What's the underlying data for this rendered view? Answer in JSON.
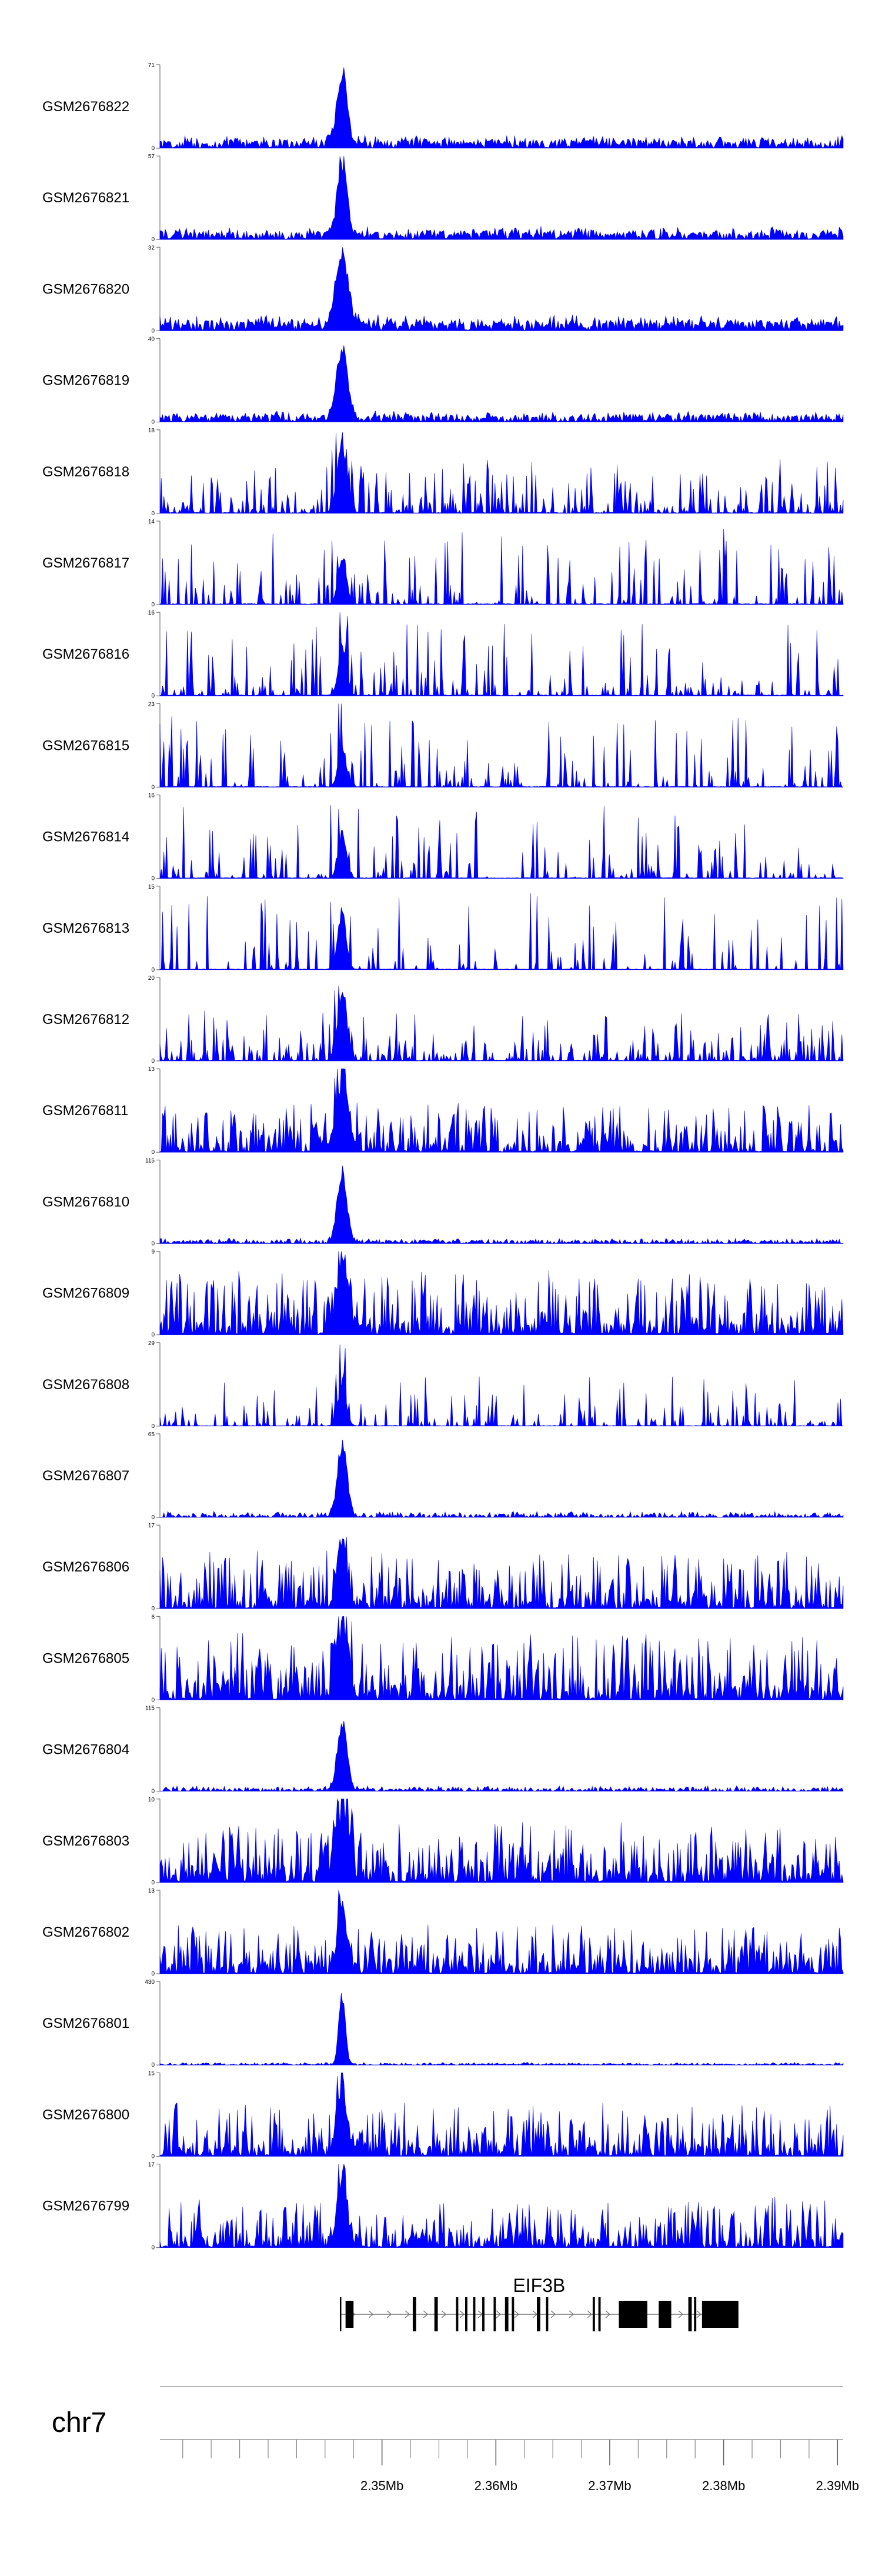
{
  "chart_data": {
    "type": "area",
    "title": "",
    "chromosome": "chr7",
    "xlim_mb": [
      2.3305,
      2.3905
    ],
    "x_ticks": [
      {
        "value": 2.35,
        "label": "2.35Mb"
      },
      {
        "value": 2.36,
        "label": "2.36Mb"
      },
      {
        "value": 2.37,
        "label": "2.37Mb"
      },
      {
        "value": 2.38,
        "label": "2.38Mb"
      },
      {
        "value": 2.39,
        "label": "2.39Mb"
      }
    ],
    "peak_center_mb": 2.3465,
    "fill_color": "#0000ff",
    "tracks": [
      {
        "name": "GSM2676822",
        "ymax": 71,
        "ymax_label": "71",
        "ymin_label": "0",
        "baseline_frac": 0.06,
        "peak_frac": 0.98,
        "peak_width": 0.0006,
        "noise_frac": 0.08,
        "sparsity": 0.2
      },
      {
        "name": "GSM2676821",
        "ymax": 57,
        "ymax_label": "57",
        "ymin_label": "0",
        "baseline_frac": 0.06,
        "peak_frac": 0.97,
        "peak_width": 0.0006,
        "noise_frac": 0.08,
        "sparsity": 0.2
      },
      {
        "name": "GSM2676820",
        "ymax": 32,
        "ymax_label": "32",
        "ymin_label": "0",
        "baseline_frac": 0.07,
        "peak_frac": 0.95,
        "peak_width": 0.0008,
        "noise_frac": 0.1,
        "sparsity": 0.15
      },
      {
        "name": "GSM2676819",
        "ymax": 40,
        "ymax_label": "40",
        "ymin_label": "0",
        "baseline_frac": 0.05,
        "peak_frac": 0.96,
        "peak_width": 0.0007,
        "noise_frac": 0.07,
        "sparsity": 0.2
      },
      {
        "name": "GSM2676818",
        "ymax": 18,
        "ymax_label": "18",
        "ymin_label": "0",
        "baseline_frac": 0.05,
        "peak_frac": 0.95,
        "peak_width": 0.0006,
        "noise_frac": 0.6,
        "sparsity": 0.6
      },
      {
        "name": "GSM2676817",
        "ymax": 14,
        "ymax_label": "14",
        "ymin_label": "0",
        "baseline_frac": 0.05,
        "peak_frac": 0.7,
        "peak_width": 0.0005,
        "noise_frac": 0.85,
        "sparsity": 0.75
      },
      {
        "name": "GSM2676816",
        "ymax": 16,
        "ymax_label": "16",
        "ymin_label": "0",
        "baseline_frac": 0.05,
        "peak_frac": 0.6,
        "peak_width": 0.0005,
        "noise_frac": 0.85,
        "sparsity": 0.7
      },
      {
        "name": "GSM2676815",
        "ymax": 23,
        "ymax_label": "23",
        "ymin_label": "0",
        "baseline_frac": 0.04,
        "peak_frac": 0.55,
        "peak_width": 0.0005,
        "noise_frac": 0.8,
        "sparsity": 0.72
      },
      {
        "name": "GSM2676814",
        "ymax": 16,
        "ymax_label": "16",
        "ymin_label": "0",
        "baseline_frac": 0.04,
        "peak_frac": 0.6,
        "peak_width": 0.0005,
        "noise_frac": 0.85,
        "sparsity": 0.74
      },
      {
        "name": "GSM2676813",
        "ymax": 15,
        "ymax_label": "15",
        "ymin_label": "0",
        "baseline_frac": 0.04,
        "peak_frac": 0.8,
        "peak_width": 0.0005,
        "noise_frac": 0.9,
        "sparsity": 0.78
      },
      {
        "name": "GSM2676812",
        "ymax": 20,
        "ymax_label": "20",
        "ymin_label": "0",
        "baseline_frac": 0.05,
        "peak_frac": 0.9,
        "peak_width": 0.0006,
        "noise_frac": 0.55,
        "sparsity": 0.55
      },
      {
        "name": "GSM2676811",
        "ymax": 13,
        "ymax_label": "13",
        "ymin_label": "0",
        "baseline_frac": 0.08,
        "peak_frac": 0.95,
        "peak_width": 0.0008,
        "noise_frac": 0.5,
        "sparsity": 0.35
      },
      {
        "name": "GSM2676810",
        "ymax": 115,
        "ymax_label": "115",
        "ymin_label": "0",
        "baseline_frac": 0.02,
        "peak_frac": 0.92,
        "peak_width": 0.0006,
        "noise_frac": 0.04,
        "sparsity": 0.3
      },
      {
        "name": "GSM2676809",
        "ymax": 9,
        "ymax_label": "9",
        "ymin_label": "0",
        "baseline_frac": 0.1,
        "peak_frac": 0.95,
        "peak_width": 0.0007,
        "noise_frac": 0.65,
        "sparsity": 0.3
      },
      {
        "name": "GSM2676808",
        "ymax": 29,
        "ymax_label": "29",
        "ymin_label": "0",
        "baseline_frac": 0.03,
        "peak_frac": 0.6,
        "peak_width": 0.0005,
        "noise_frac": 0.6,
        "sparsity": 0.72
      },
      {
        "name": "GSM2676807",
        "ymax": 65,
        "ymax_label": "65",
        "ymin_label": "0",
        "baseline_frac": 0.02,
        "peak_frac": 0.95,
        "peak_width": 0.0006,
        "noise_frac": 0.05,
        "sparsity": 0.3
      },
      {
        "name": "GSM2676806",
        "ymax": 17,
        "ymax_label": "17",
        "ymin_label": "0",
        "baseline_frac": 0.08,
        "peak_frac": 0.92,
        "peak_width": 0.0006,
        "noise_frac": 0.6,
        "sparsity": 0.3
      },
      {
        "name": "GSM2676805",
        "ymax": 6,
        "ymax_label": "6",
        "ymin_label": "0",
        "baseline_frac": 0.1,
        "peak_frac": 0.95,
        "peak_width": 0.0007,
        "noise_frac": 0.7,
        "sparsity": 0.3
      },
      {
        "name": "GSM2676804",
        "ymax": 115,
        "ymax_label": "115",
        "ymin_label": "0",
        "baseline_frac": 0.02,
        "peak_frac": 0.92,
        "peak_width": 0.0006,
        "noise_frac": 0.04,
        "sparsity": 0.3
      },
      {
        "name": "GSM2676803",
        "ymax": 10,
        "ymax_label": "10",
        "ymin_label": "0",
        "baseline_frac": 0.1,
        "peak_frac": 0.92,
        "peak_width": 0.0008,
        "noise_frac": 0.6,
        "sparsity": 0.25
      },
      {
        "name": "GSM2676802",
        "ymax": 13,
        "ymax_label": "13",
        "ymin_label": "0",
        "baseline_frac": 0.08,
        "peak_frac": 0.9,
        "peak_width": 0.0006,
        "noise_frac": 0.5,
        "sparsity": 0.3
      },
      {
        "name": "GSM2676801",
        "ymax": 430,
        "ymax_label": "430",
        "ymin_label": "0",
        "baseline_frac": 0.01,
        "peak_frac": 0.95,
        "peak_width": 0.0004,
        "noise_frac": 0.02,
        "sparsity": 0.3
      },
      {
        "name": "GSM2676800",
        "ymax": 15,
        "ymax_label": "15",
        "ymin_label": "0",
        "baseline_frac": 0.08,
        "peak_frac": 0.95,
        "peak_width": 0.0006,
        "noise_frac": 0.55,
        "sparsity": 0.3
      },
      {
        "name": "GSM2676799",
        "ymax": 17,
        "ymax_label": "17",
        "ymin_label": "0",
        "baseline_frac": 0.08,
        "peak_frac": 0.93,
        "peak_width": 0.0006,
        "noise_frac": 0.5,
        "sparsity": 0.3
      }
    ],
    "gene": {
      "name": "EIF3B",
      "start_mb": 2.3463,
      "end_mb": 2.3813,
      "strand": "+",
      "exons": [
        {
          "start": 2.3463,
          "end": 2.3464,
          "thick": false
        },
        {
          "start": 2.3468,
          "end": 2.3475,
          "thick": true
        },
        {
          "start": 2.3527,
          "end": 2.353,
          "thick": false
        },
        {
          "start": 2.3546,
          "end": 2.3549,
          "thick": false
        },
        {
          "start": 2.3565,
          "end": 2.3567,
          "thick": false
        },
        {
          "start": 2.3573,
          "end": 2.3575,
          "thick": false
        },
        {
          "start": 2.358,
          "end": 2.3582,
          "thick": false
        },
        {
          "start": 2.3588,
          "end": 2.359,
          "thick": false
        },
        {
          "start": 2.3598,
          "end": 2.36,
          "thick": false
        },
        {
          "start": 2.3608,
          "end": 2.3611,
          "thick": false
        },
        {
          "start": 2.3614,
          "end": 2.3616,
          "thick": false
        },
        {
          "start": 2.3636,
          "end": 2.3639,
          "thick": false
        },
        {
          "start": 2.3644,
          "end": 2.3646,
          "thick": false
        },
        {
          "start": 2.3685,
          "end": 2.3687,
          "thick": false
        },
        {
          "start": 2.369,
          "end": 2.3692,
          "thick": false
        },
        {
          "start": 2.3708,
          "end": 2.3733,
          "thick": true
        },
        {
          "start": 2.3743,
          "end": 2.3754,
          "thick": true
        },
        {
          "start": 2.3769,
          "end": 2.3772,
          "thick": false
        },
        {
          "start": 2.3774,
          "end": 2.3776,
          "thick": false
        },
        {
          "start": 2.3781,
          "end": 2.3813,
          "thick": true
        }
      ]
    }
  }
}
